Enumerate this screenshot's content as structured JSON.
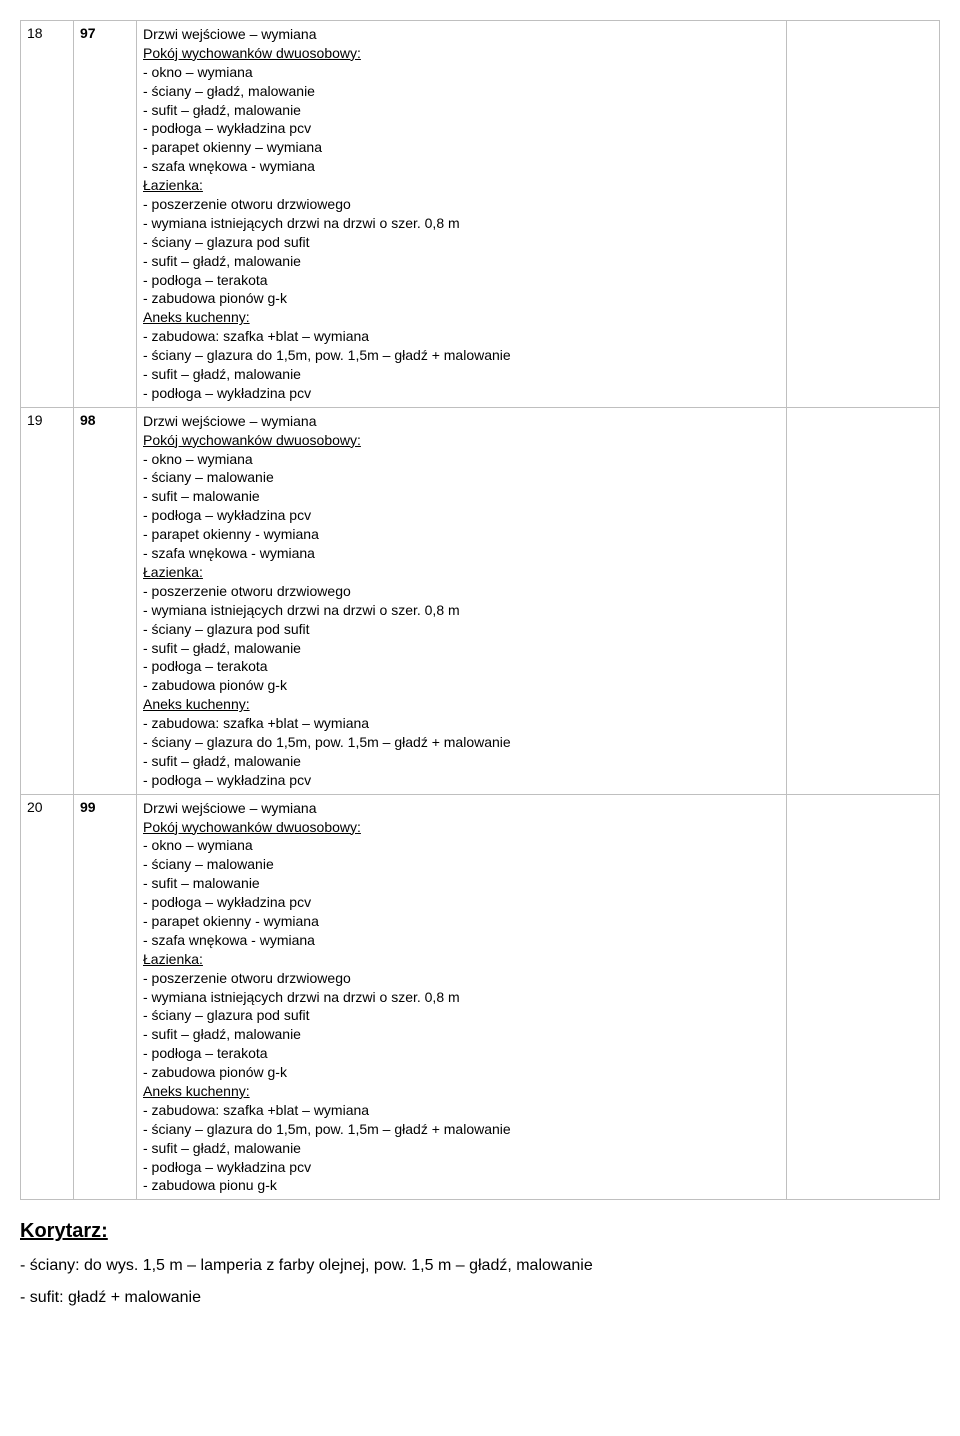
{
  "rows": [
    {
      "num": "18",
      "id": "97",
      "content": [
        {
          "text": "Drzwi wejściowe – wymiana",
          "u": false
        },
        {
          "text": "Pokój wychowanków dwuosobowy:",
          "u": true
        },
        {
          "text": "- okno – wymiana",
          "u": false
        },
        {
          "text": "- ściany – gładź, malowanie",
          "u": false
        },
        {
          "text": "- sufit – gładź, malowanie",
          "u": false
        },
        {
          "text": "- podłoga – wykładzina pcv",
          "u": false
        },
        {
          "text": "- parapet okienny – wymiana",
          "u": false
        },
        {
          "text": "- szafa wnękowa - wymiana",
          "u": false
        },
        {
          "text": "Łazienka:",
          "u": true
        },
        {
          "text": "- poszerzenie otworu drzwiowego",
          "u": false
        },
        {
          "text": "- wymiana istniejących drzwi na drzwi o szer. 0,8 m",
          "u": false
        },
        {
          "text": "- ściany – glazura pod sufit",
          "u": false
        },
        {
          "text": "- sufit –  gładź, malowanie",
          "u": false
        },
        {
          "text": "- podłoga – terakota",
          "u": false
        },
        {
          "text": "- zabudowa pionów g-k",
          "u": false
        },
        {
          "text": "Aneks kuchenny:",
          "u": true
        },
        {
          "text": "- zabudowa: szafka +blat – wymiana",
          "u": false
        },
        {
          "text": "- ściany – glazura do 1,5m, pow. 1,5m – gładź + malowanie",
          "u": false
        },
        {
          "text": "- sufit –  gładź, malowanie",
          "u": false
        },
        {
          "text": "- podłoga – wykładzina pcv",
          "u": false
        }
      ]
    },
    {
      "num": "19",
      "id": "98",
      "content": [
        {
          "text": "Drzwi wejściowe – wymiana",
          "u": false
        },
        {
          "text": "Pokój wychowanków dwuosobowy:",
          "u": true
        },
        {
          "text": "- okno – wymiana",
          "u": false
        },
        {
          "text": "- ściany –  malowanie",
          "u": false
        },
        {
          "text": "- sufit – malowanie",
          "u": false
        },
        {
          "text": "- podłoga – wykładzina pcv",
          "u": false
        },
        {
          "text": "- parapet okienny - wymiana",
          "u": false
        },
        {
          "text": "- szafa wnękowa - wymiana",
          "u": false
        },
        {
          "text": "Łazienka:",
          "u": true
        },
        {
          "text": "- poszerzenie otworu drzwiowego",
          "u": false
        },
        {
          "text": "- wymiana istniejących drzwi na drzwi o szer. 0,8 m",
          "u": false
        },
        {
          "text": "- ściany – glazura pod sufit",
          "u": false
        },
        {
          "text": "- sufit –  gładź, malowanie",
          "u": false
        },
        {
          "text": "- podłoga – terakota",
          "u": false
        },
        {
          "text": "- zabudowa pionów g-k",
          "u": false
        },
        {
          "text": "Aneks kuchenny:",
          "u": true
        },
        {
          "text": "- zabudowa: szafka +blat – wymiana",
          "u": false
        },
        {
          "text": "- ściany – glazura do 1,5m, pow. 1,5m – gładź + malowanie",
          "u": false
        },
        {
          "text": "- sufit –  gładź, malowanie",
          "u": false
        },
        {
          "text": "- podłoga – wykładzina pcv",
          "u": false
        }
      ]
    },
    {
      "num": "20",
      "id": "99",
      "content": [
        {
          "text": "Drzwi wejściowe – wymiana",
          "u": false
        },
        {
          "text": "Pokój wychowanków dwuosobowy:",
          "u": true
        },
        {
          "text": "- okno – wymiana",
          "u": false
        },
        {
          "text": "- ściany –   malowanie",
          "u": false
        },
        {
          "text": "- sufit –  malowanie",
          "u": false
        },
        {
          "text": "- podłoga – wykładzina pcv",
          "u": false
        },
        {
          "text": "- parapet okienny - wymiana",
          "u": false
        },
        {
          "text": "- szafa wnękowa - wymiana",
          "u": false
        },
        {
          "text": "Łazienka:",
          "u": true
        },
        {
          "text": "- poszerzenie otworu drzwiowego",
          "u": false
        },
        {
          "text": "- wymiana istniejących drzwi na drzwi o szer. 0,8 m",
          "u": false
        },
        {
          "text": "- ściany – glazura pod sufit",
          "u": false
        },
        {
          "text": "- sufit –  gładź, malowanie",
          "u": false
        },
        {
          "text": "- podłoga – terakota",
          "u": false
        },
        {
          "text": "- zabudowa pionów g-k",
          "u": false
        },
        {
          "text": "Aneks kuchenny:",
          "u": true
        },
        {
          "text": "- zabudowa: szafka +blat – wymiana",
          "u": false
        },
        {
          "text": "- ściany – glazura do 1,5m, pow. 1,5m – gładź + malowanie",
          "u": false
        },
        {
          "text": "- sufit –  gładź, malowanie",
          "u": false
        },
        {
          "text": "- podłoga – wykładzina pcv",
          "u": false
        },
        {
          "text": "- zabudowa pionu g-k",
          "u": false
        }
      ]
    }
  ],
  "section_title": "Korytarz:",
  "para1": "- ściany: do wys. 1,5 m – lamperia z farby olejnej, pow. 1,5 m – gładź, malowanie",
  "para2": "- sufit: gładź + malowanie"
}
